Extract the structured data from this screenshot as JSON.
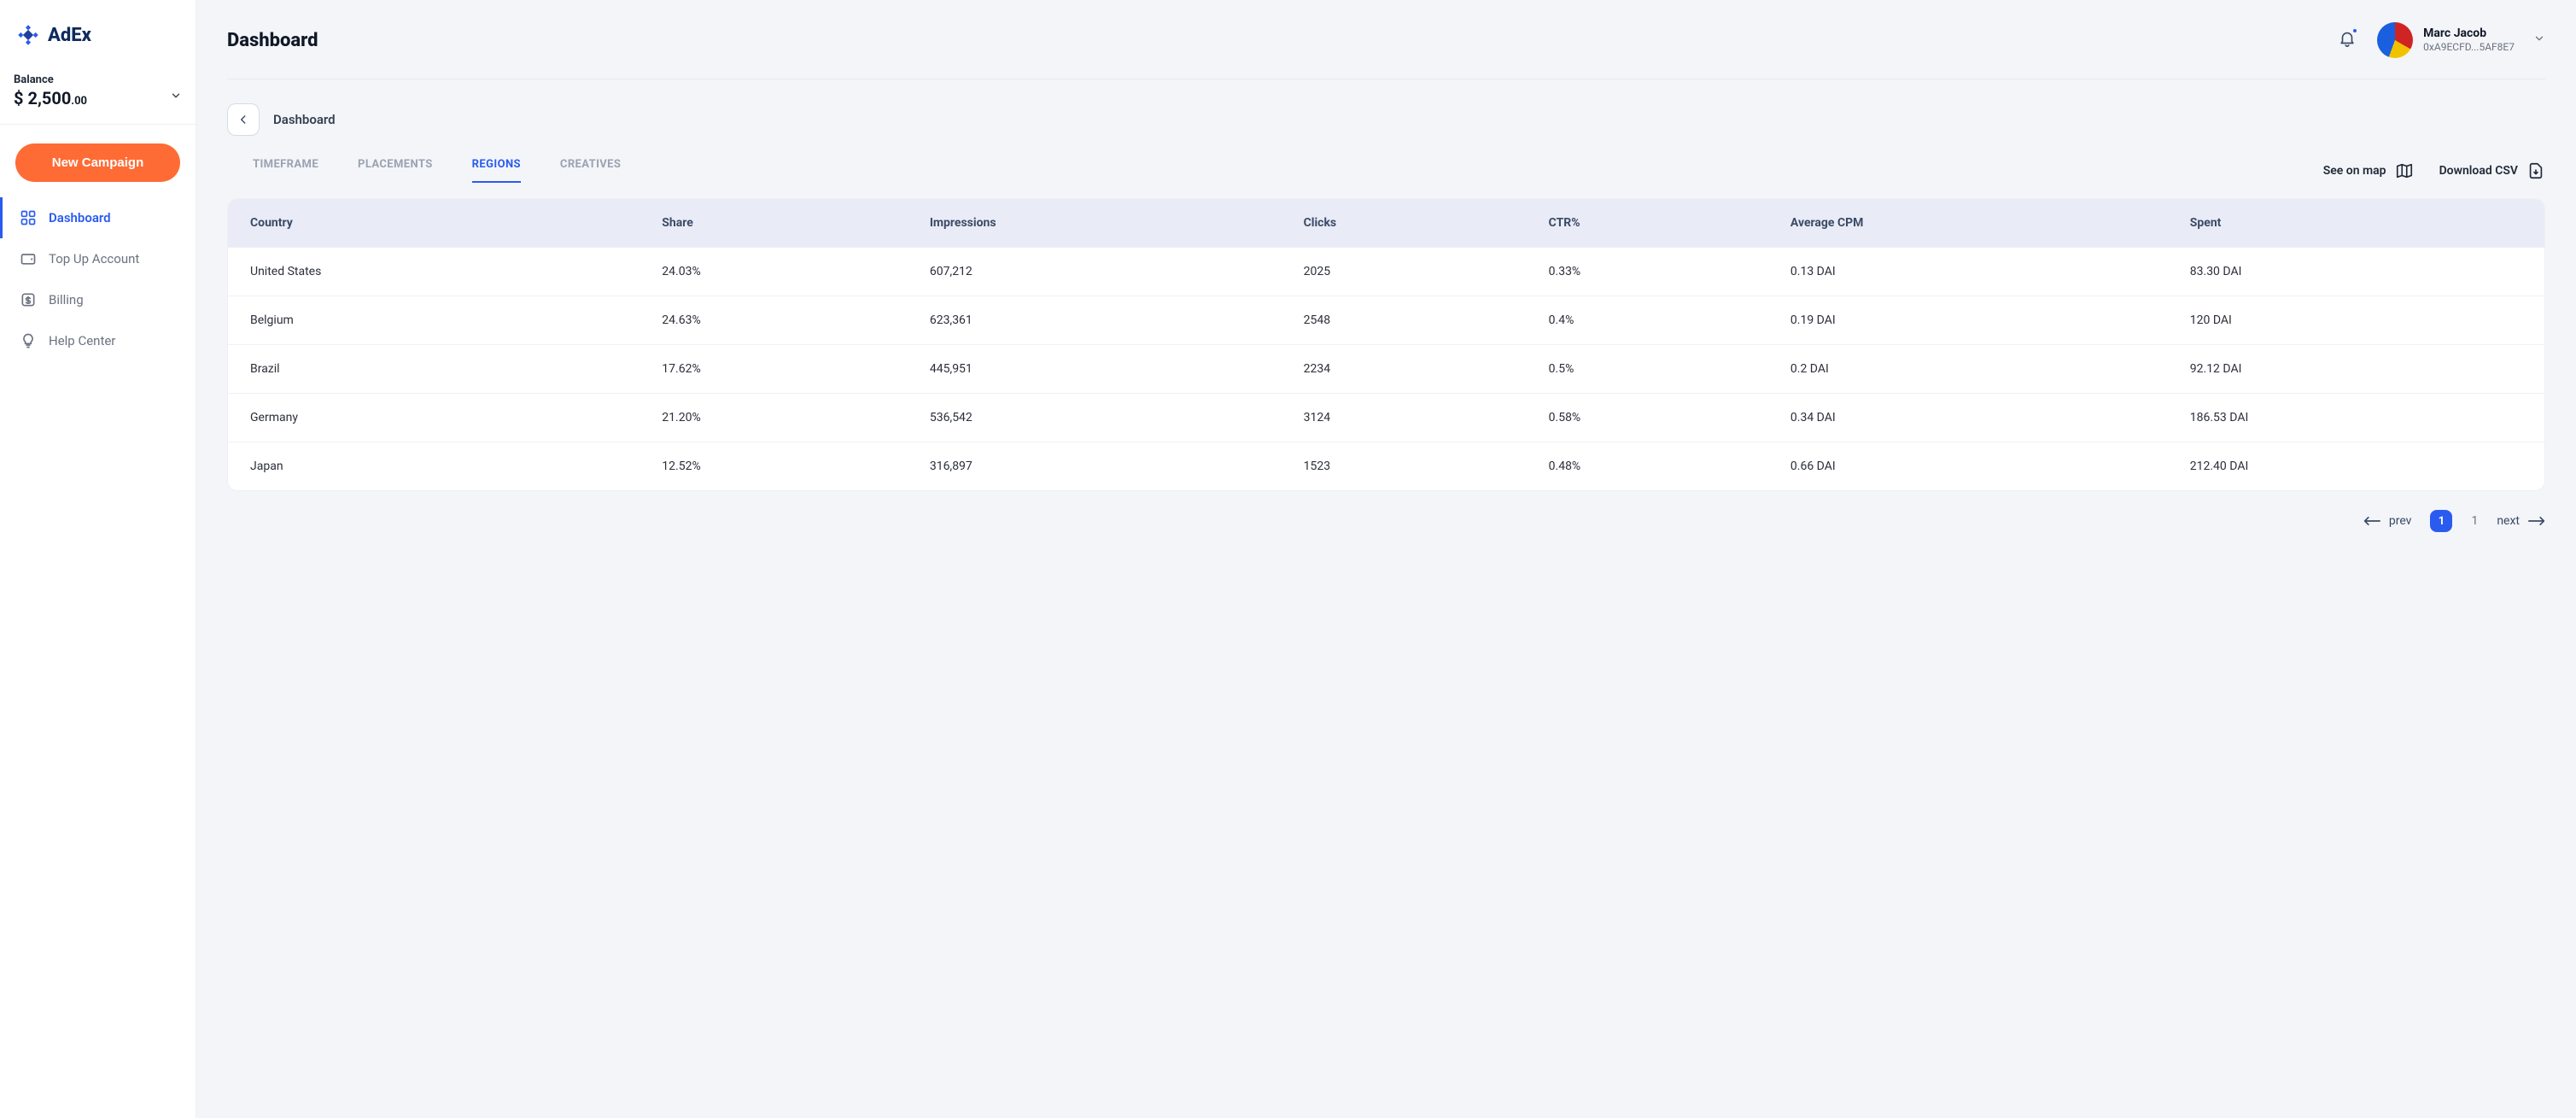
{
  "brand": {
    "name": "AdEx"
  },
  "balance": {
    "label": "Balance",
    "currency": "$",
    "major": "2,500",
    "minor": ".00"
  },
  "cta": {
    "new_campaign": "New Campaign"
  },
  "nav": {
    "items": [
      {
        "label": "Dashboard",
        "active": true
      },
      {
        "label": "Top Up Account",
        "active": false
      },
      {
        "label": "Billing",
        "active": false
      },
      {
        "label": "Help Center",
        "active": false
      }
    ]
  },
  "header": {
    "title": "Dashboard",
    "user": {
      "name": "Marc Jacob",
      "address": "0xA9ECFD...5AF8E7"
    }
  },
  "breadcrumb": {
    "label": "Dashboard"
  },
  "tabs": {
    "items": [
      {
        "label": "TIMEFRAME",
        "active": false
      },
      {
        "label": "PLACEMENTS",
        "active": false
      },
      {
        "label": "REGIONS",
        "active": true
      },
      {
        "label": "CREATIVES",
        "active": false
      }
    ],
    "actions": {
      "map": "See on map",
      "csv": "Download CSV"
    }
  },
  "table": {
    "columns": [
      "Country",
      "Share",
      "Impressions",
      "Clicks",
      "CTR%",
      "Average CPM",
      "Spent"
    ],
    "rows": [
      [
        "United States",
        "24.03%",
        "607,212",
        "2025",
        "0.33%",
        "0.13 DAI",
        "83.30 DAI"
      ],
      [
        "Belgium",
        "24.63%",
        "623,361",
        "2548",
        "0.4%",
        "0.19 DAI",
        "120 DAI"
      ],
      [
        "Brazil",
        "17.62%",
        "445,951",
        "2234",
        "0.5%",
        "0.2 DAI",
        "92.12 DAI"
      ],
      [
        "Germany",
        "21.20%",
        "536,542",
        "3124",
        "0.58%",
        "0.34 DAI",
        "186.53 DAI"
      ],
      [
        "Japan",
        "12.52%",
        "316,897",
        "1523",
        "0.48%",
        "0.66 DAI",
        "212.40 DAI"
      ]
    ]
  },
  "pagination": {
    "prev": "prev",
    "next": "next",
    "current": "1",
    "total": "1"
  },
  "colors": {
    "accent": "#2a5bf0",
    "cta": "#ff6b35",
    "text": "#1f2937",
    "muted": "#6b7280",
    "bg": "#f3f5f9",
    "table_header_bg": "#e9ecf6",
    "border": "#eef0f4"
  }
}
